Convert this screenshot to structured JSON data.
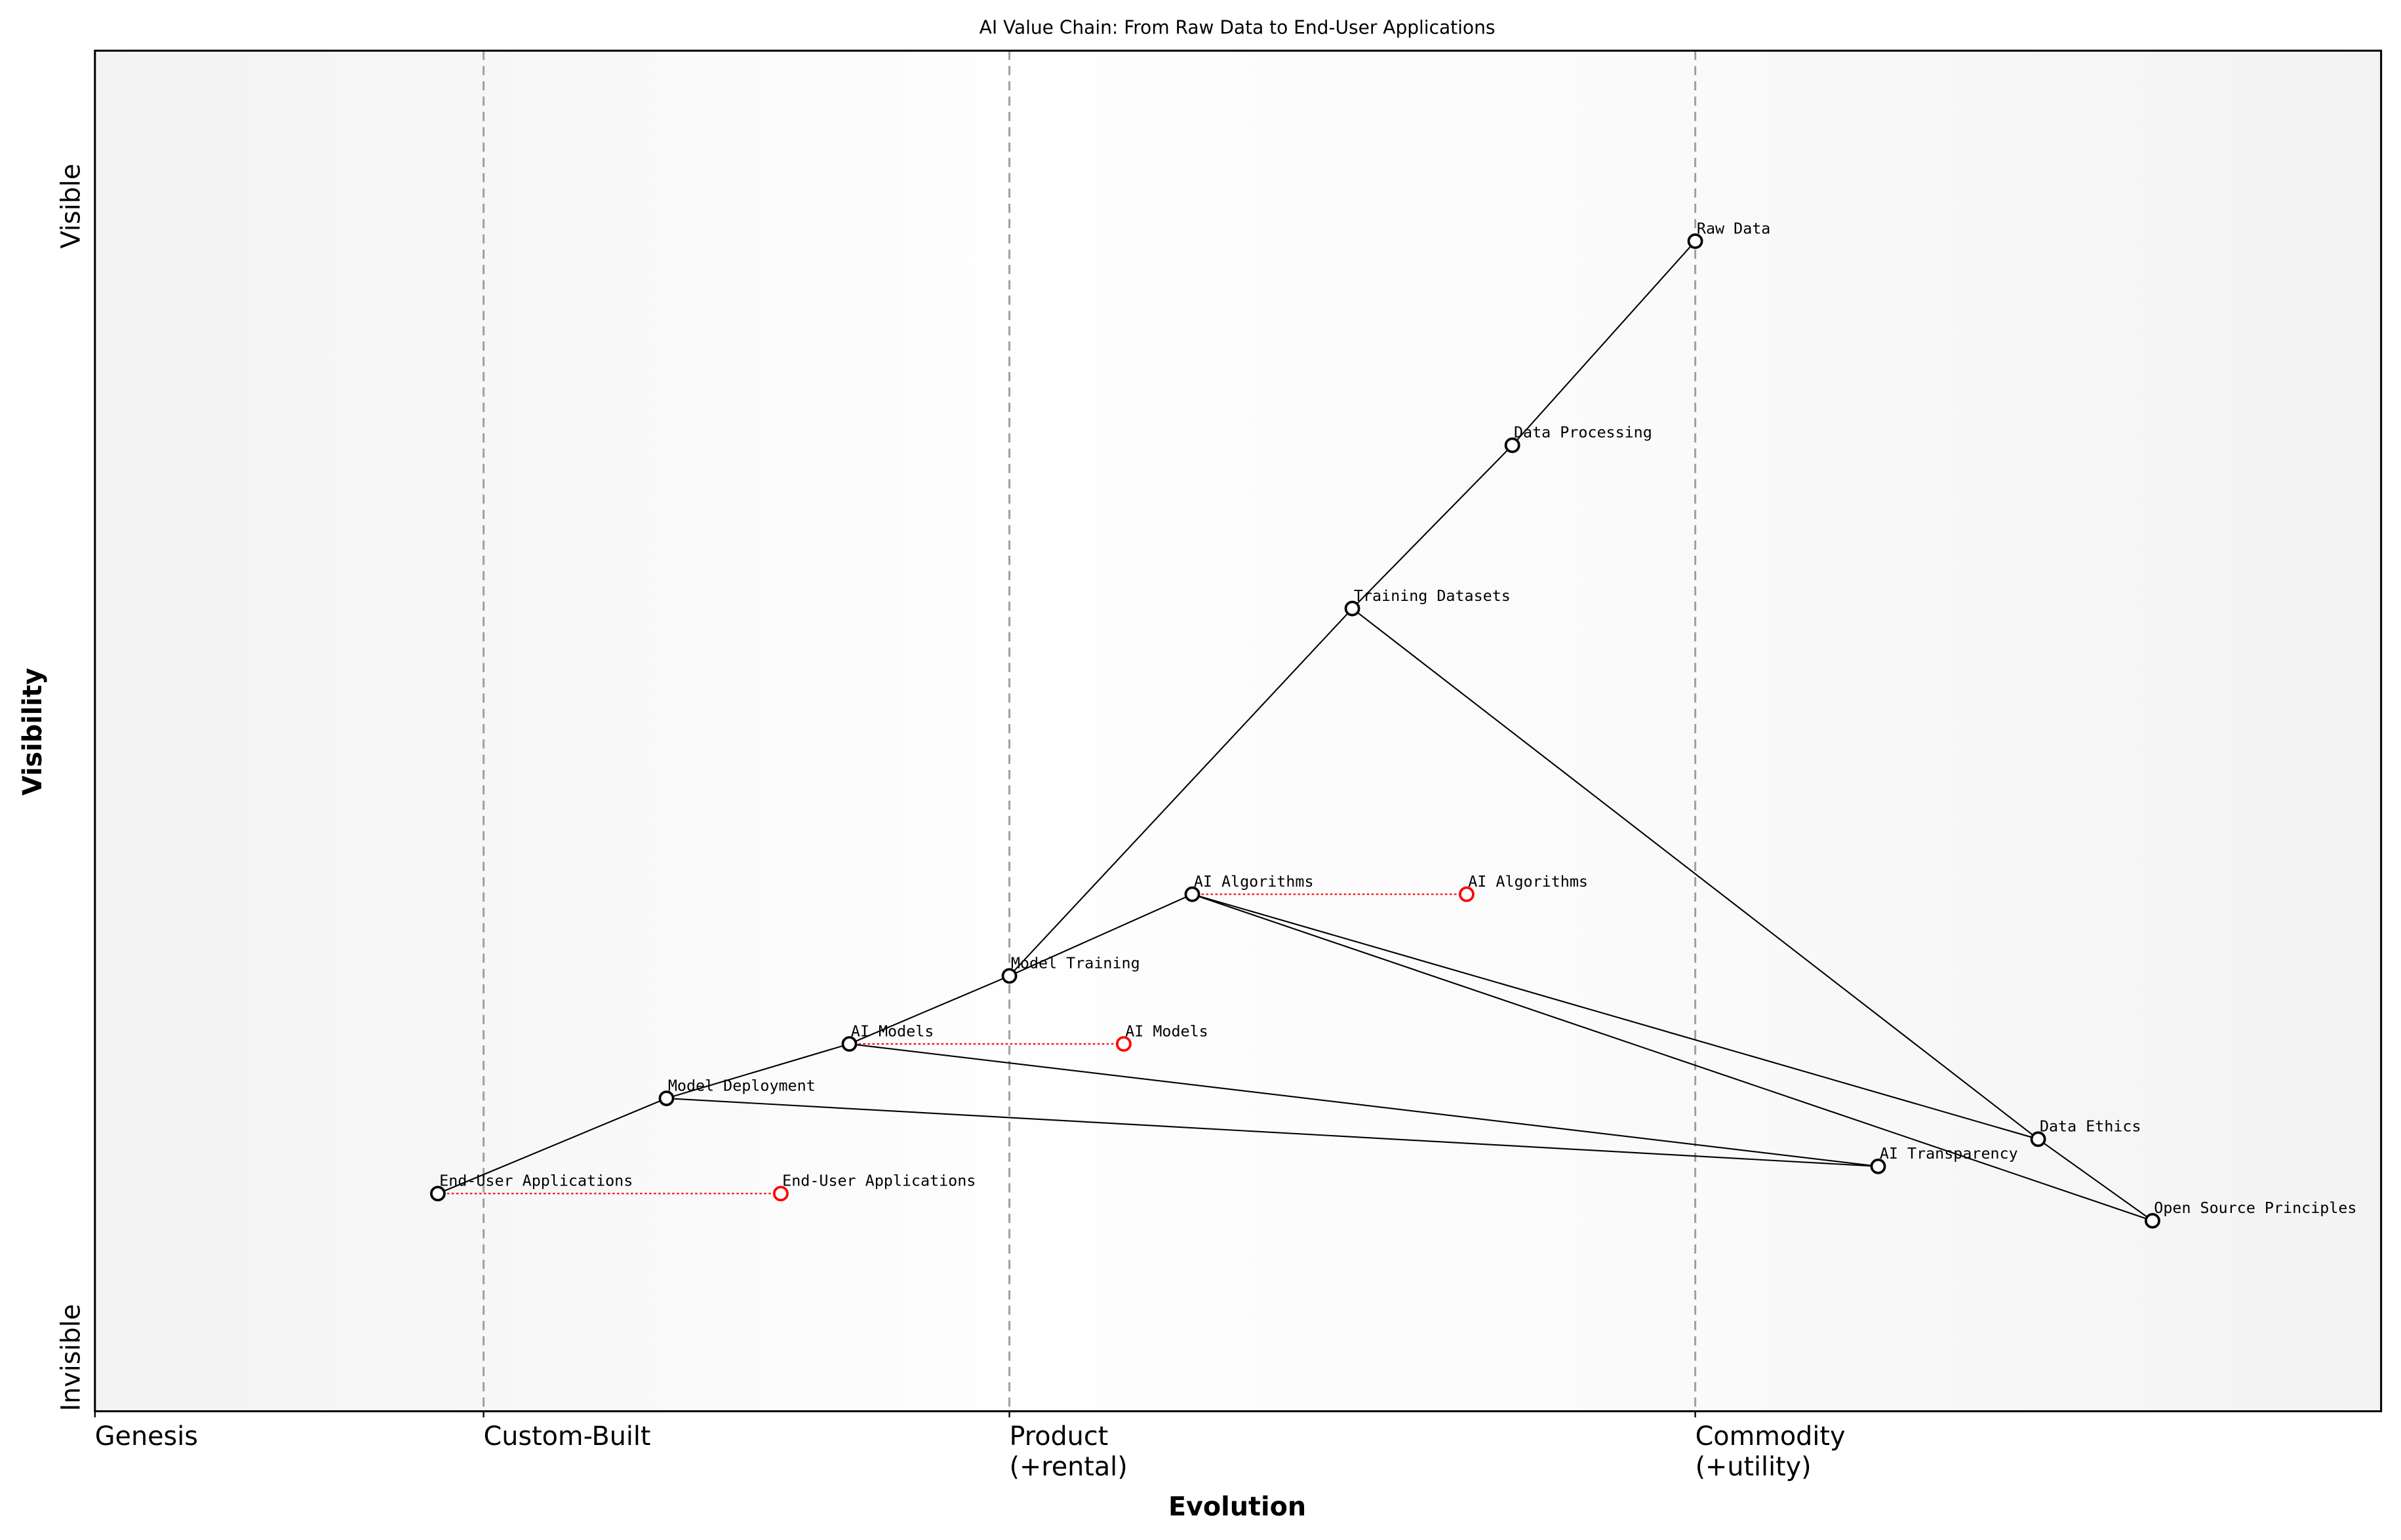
{
  "chart_data": {
    "type": "scatter",
    "title": "AI Value Chain: From Raw Data to End-User Applications",
    "xlabel": "Evolution",
    "ylabel": "Visibility",
    "xlim": [
      0,
      1
    ],
    "ylim": [
      0,
      1
    ],
    "grid": false,
    "y_ticks": [
      {
        "value": 0.87,
        "label": "Visible"
      },
      {
        "value": 0.0,
        "label": "Invisible"
      }
    ],
    "stages": [
      {
        "value": 0.0,
        "label": "Genesis",
        "line": false
      },
      {
        "value": 0.17,
        "label": "Custom-Built",
        "line": true
      },
      {
        "value": 0.4,
        "label": "Product\n(+rental)",
        "line": true
      },
      {
        "value": 0.7,
        "label": "Commodity\n(+utility)",
        "line": true
      }
    ],
    "components": [
      {
        "name": "Raw Data",
        "x": 0.7,
        "y": 0.86
      },
      {
        "name": "Data Processing",
        "x": 0.62,
        "y": 0.71
      },
      {
        "name": "Training Datasets",
        "x": 0.55,
        "y": 0.59
      },
      {
        "name": "AI Algorithms",
        "x": 0.48,
        "y": 0.38
      },
      {
        "name": "Model Training",
        "x": 0.4,
        "y": 0.32
      },
      {
        "name": "AI Models",
        "x": 0.33,
        "y": 0.27
      },
      {
        "name": "Model Deployment",
        "x": 0.25,
        "y": 0.23
      },
      {
        "name": "End-User Applications",
        "x": 0.15,
        "y": 0.16
      },
      {
        "name": "Data Ethics",
        "x": 0.85,
        "y": 0.2
      },
      {
        "name": "AI Transparency",
        "x": 0.78,
        "y": 0.18
      },
      {
        "name": "Open Source Principles",
        "x": 0.9,
        "y": 0.14
      }
    ],
    "links": [
      [
        "End-User Applications",
        "Model Deployment"
      ],
      [
        "Model Deployment",
        "AI Models"
      ],
      [
        "AI Models",
        "Model Training"
      ],
      [
        "Model Training",
        "AI Algorithms"
      ],
      [
        "Model Training",
        "Training Datasets"
      ],
      [
        "Training Datasets",
        "Data Processing"
      ],
      [
        "Data Processing",
        "Raw Data"
      ],
      [
        "Training Datasets",
        "Data Ethics"
      ],
      [
        "AI Algorithms",
        "Data Ethics"
      ],
      [
        "AI Algorithms",
        "Open Source Principles"
      ],
      [
        "Data Ethics",
        "Open Source Principles"
      ],
      [
        "AI Models",
        "AI Transparency"
      ],
      [
        "Model Deployment",
        "AI Transparency"
      ]
    ],
    "evolutions": [
      {
        "name": "End-User Applications",
        "from_x": 0.15,
        "to_x": 0.3,
        "y": 0.16
      },
      {
        "name": "AI Models",
        "from_x": 0.33,
        "to_x": 0.45,
        "y": 0.27
      },
      {
        "name": "AI Algorithms",
        "from_x": 0.48,
        "to_x": 0.6,
        "y": 0.38
      }
    ],
    "colors": {
      "component": "#000000",
      "evolved": "#ff0000",
      "stage_line": "#a0a0a0"
    }
  }
}
